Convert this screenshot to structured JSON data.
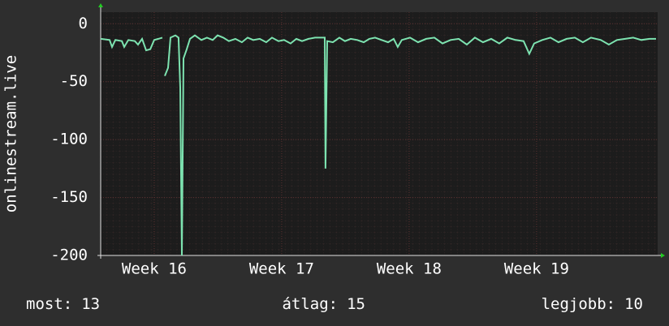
{
  "chart_data": {
    "type": "line",
    "ylabel": "onlinestream.live",
    "xlim": [
      15.58,
      19.95
    ],
    "xticks": [
      {
        "value": 16,
        "label": "Week 16"
      },
      {
        "value": 17,
        "label": "Week 17"
      },
      {
        "value": 18,
        "label": "Week 18"
      },
      {
        "value": 19,
        "label": "Week 19"
      }
    ],
    "ylim": [
      -200,
      10
    ],
    "yticks": [
      0,
      -50,
      -100,
      -150,
      -200
    ],
    "grid": true,
    "series": [
      {
        "color": "#7de3b0",
        "x": [
          15.58,
          15.65,
          15.669,
          15.695,
          15.746,
          15.765,
          15.797,
          15.848,
          15.873,
          15.905,
          15.937,
          15.969,
          16.0,
          16.032,
          16.064,
          16.077,
          16.083,
          16.109,
          16.128,
          16.166,
          16.191,
          16.204,
          16.217,
          16.23,
          16.255,
          16.281,
          16.319,
          16.37,
          16.414,
          16.459,
          16.497,
          16.542,
          16.586,
          16.637,
          16.688,
          16.733,
          16.777,
          16.828,
          16.879,
          16.924,
          16.975,
          17.019,
          17.07,
          17.115,
          17.16,
          17.211,
          17.262,
          17.306,
          17.338,
          17.344,
          17.357,
          17.402,
          17.453,
          17.497,
          17.542,
          17.593,
          17.644,
          17.688,
          17.733,
          17.784,
          17.835,
          17.879,
          17.911,
          17.943,
          18.007,
          18.07,
          18.134,
          18.198,
          18.262,
          18.325,
          18.389,
          18.453,
          18.516,
          18.58,
          18.644,
          18.707,
          18.771,
          18.835,
          18.898,
          18.943,
          18.981,
          19.045,
          19.109,
          19.172,
          19.236,
          19.3,
          19.363,
          19.427,
          19.504,
          19.567,
          19.631,
          19.695,
          19.758,
          19.822,
          19.886,
          19.937
        ],
        "values": [
          -13,
          -14,
          -20,
          -14,
          -15,
          -20,
          -14,
          -15,
          -18,
          -13,
          -23,
          -22,
          -14,
          -13,
          -12,
          null,
          -45,
          -38,
          -12,
          -10,
          -12,
          -55,
          -200,
          -30,
          -22,
          -13,
          -10,
          -14,
          -12,
          -14,
          -10,
          -12,
          -15,
          -13,
          -16,
          -12,
          -14,
          -13,
          -16,
          -12,
          -15,
          -14,
          -17,
          -13,
          -15,
          -13,
          -12,
          -12,
          -12,
          -125,
          -15,
          -16,
          -12,
          -15,
          -13,
          -14,
          -16,
          -13,
          -12,
          -14,
          -16,
          -13,
          -20,
          -14,
          -12,
          -16,
          -13,
          -12,
          -17,
          -14,
          -13,
          -18,
          -12,
          -16,
          -13,
          -17,
          -12,
          -14,
          -15,
          -26,
          -17,
          -14,
          -12,
          -16,
          -13,
          -12,
          -16,
          -12,
          -14,
          -18,
          -14,
          -13,
          -12,
          -14,
          -13,
          -13
        ]
      }
    ]
  },
  "stats": [
    {
      "label": "most:",
      "value": 13
    },
    {
      "label": "átlag:",
      "value": 15
    },
    {
      "label": "legjobb:",
      "value": 10
    }
  ]
}
